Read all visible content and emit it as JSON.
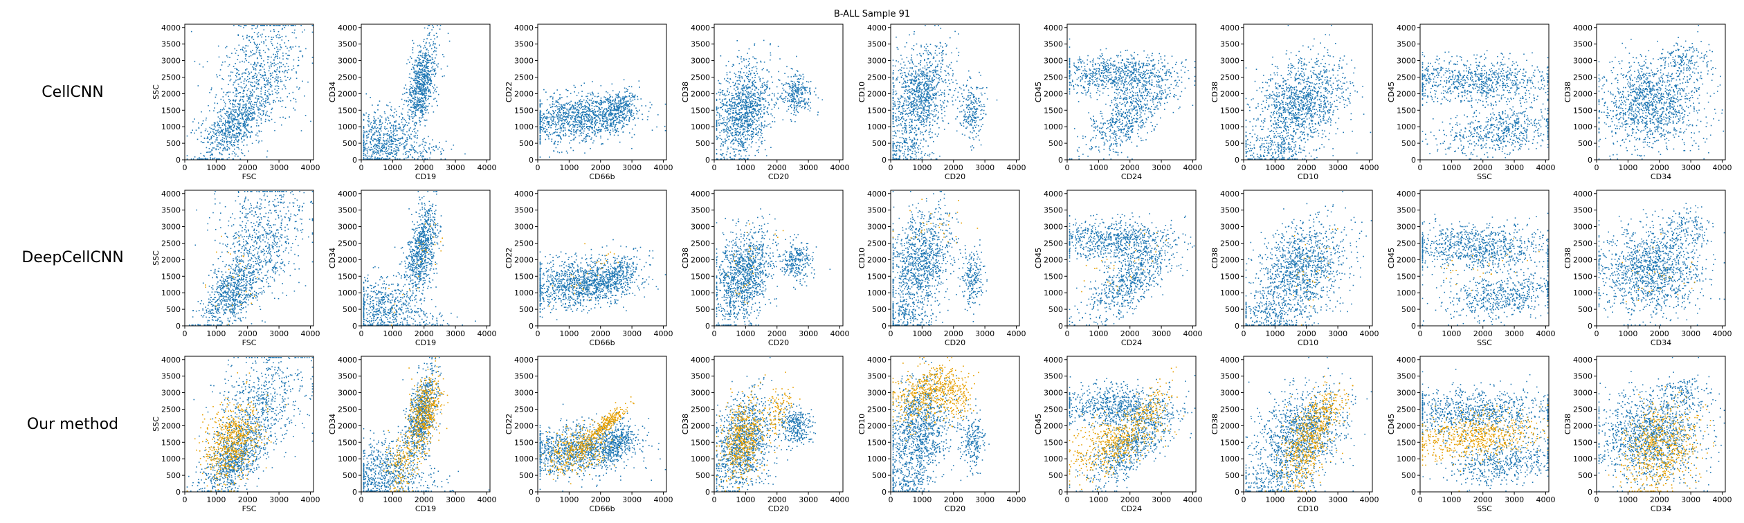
{
  "figure": {
    "title": "B-ALL Sample 91",
    "colors": {
      "background_cells": "#1f77b4",
      "highlighted_cells": "#e69f00"
    },
    "xlim": [
      0,
      4100
    ],
    "ylim": [
      0,
      4100
    ],
    "ticks": [
      0,
      500,
      1000,
      1500,
      2000,
      2500,
      3000,
      3500,
      4000
    ],
    "x_ticks": [
      0,
      1000,
      2000,
      3000,
      4000
    ],
    "y_ticks": [
      0,
      500,
      1000,
      1500,
      2000,
      2500,
      3000,
      3500,
      4000
    ]
  },
  "rows": [
    {
      "label": "CellCNN"
    },
    {
      "label": "DeepCellCNN"
    },
    {
      "label": "Our method"
    }
  ],
  "chart_data": {
    "type": "scatter",
    "title": "B-ALL Sample 91",
    "series": [
      {
        "color": "#1f77b4"
      },
      {
        "color": "#e69f00"
      }
    ],
    "panels": [
      {
        "xlabel": "FSC",
        "ylabel": "SSC"
      },
      {
        "xlabel": "CD19",
        "ylabel": "CD34"
      },
      {
        "xlabel": "CD66b",
        "ylabel": "CD22"
      },
      {
        "xlabel": "CD20",
        "ylabel": "CD38"
      },
      {
        "xlabel": "CD20",
        "ylabel": "CD10"
      },
      {
        "xlabel": "CD24",
        "ylabel": "CD45"
      },
      {
        "xlabel": "CD10",
        "ylabel": "CD38"
      },
      {
        "xlabel": "SSC",
        "ylabel": "CD45"
      },
      {
        "xlabel": "CD34",
        "ylabel": "CD38"
      }
    ],
    "highlight_fraction_by_row": [
      0,
      0.02,
      0.45
    ],
    "xlim": [
      0,
      4100
    ],
    "ylim": [
      0,
      4100
    ]
  }
}
